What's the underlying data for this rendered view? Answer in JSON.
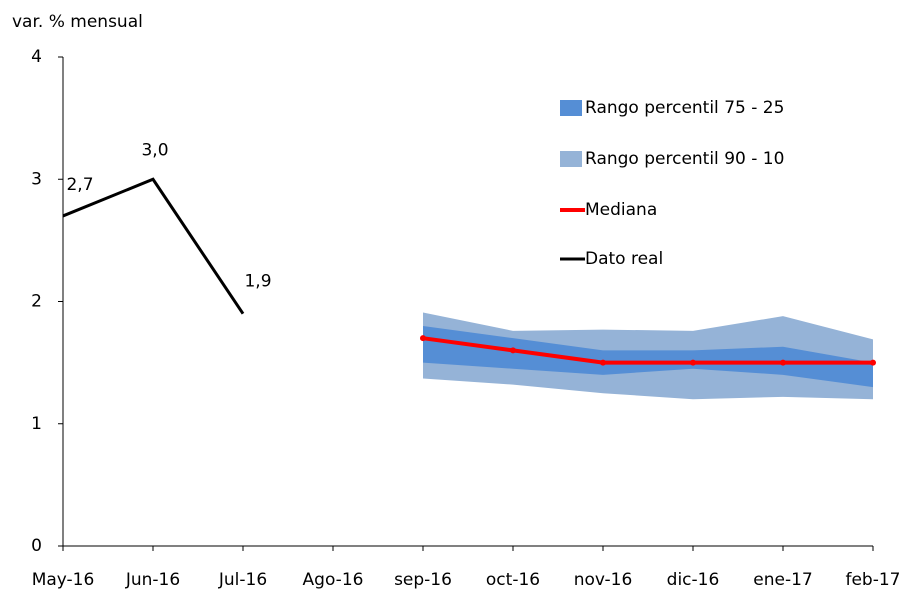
{
  "chart_data": {
    "type": "line",
    "y_label": "var. % mensual",
    "categories": [
      "May-16",
      "Jun-16",
      "Jul-16",
      "Ago-16",
      "sep-16",
      "oct-16",
      "nov-16",
      "dic-16",
      "ene-17",
      "feb-17"
    ],
    "ylim": [
      0,
      4
    ],
    "yticks": [
      0,
      1,
      2,
      3,
      4
    ],
    "grid": false,
    "legend": "upper right",
    "bands": [
      {
        "name": "Rango percentil 75 - 25",
        "color": "#558ed5",
        "upper": [
          null,
          null,
          null,
          null,
          1.8,
          1.7,
          1.6,
          1.6,
          1.63,
          1.5
        ],
        "lower": [
          null,
          null,
          null,
          null,
          1.5,
          1.45,
          1.4,
          1.45,
          1.4,
          1.3
        ]
      },
      {
        "name": "Rango percentil 90 - 10",
        "color": "#95b3d7",
        "upper": [
          null,
          null,
          null,
          null,
          1.91,
          1.76,
          1.77,
          1.76,
          1.88,
          1.69
        ],
        "lower": [
          null,
          null,
          null,
          null,
          1.37,
          1.32,
          1.25,
          1.2,
          1.22,
          1.2
        ]
      }
    ],
    "series": [
      {
        "name": "Mediana",
        "color": "#ff0000",
        "values": [
          null,
          null,
          null,
          null,
          1.7,
          1.6,
          1.5,
          1.5,
          1.5,
          1.5
        ]
      },
      {
        "name": "Dato real",
        "color": "#000000",
        "values": [
          2.7,
          3.0,
          1.9,
          null,
          null,
          null,
          null,
          null,
          null,
          null
        ],
        "value_labels": [
          "2,7",
          "3,0",
          "1,9",
          null,
          null,
          null,
          null,
          null,
          null,
          null
        ]
      }
    ]
  }
}
